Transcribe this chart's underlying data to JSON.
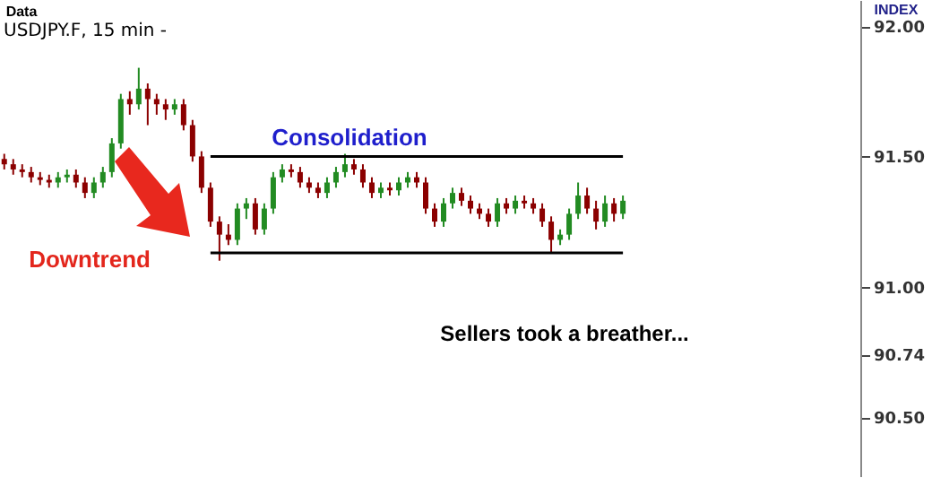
{
  "chart_data": {
    "type": "candlestick",
    "title": "USDJPY.F, 15 min -",
    "annotations": [
      "Consolidation",
      "Downtrend",
      "Sellers took a breather...",
      "Data",
      "INDEX"
    ],
    "categories": [
      null,
      null,
      null,
      null,
      null,
      null,
      null,
      null,
      null,
      null,
      null,
      null,
      null,
      null,
      null,
      null,
      null,
      null,
      null,
      null,
      null,
      null,
      null,
      null,
      null,
      null,
      null,
      null,
      null,
      null,
      null,
      null,
      null,
      null,
      null,
      null,
      null,
      null,
      null,
      null,
      null,
      null,
      null,
      null,
      null,
      null,
      null,
      null,
      null,
      null,
      null,
      null,
      null,
      null,
      null,
      null,
      null,
      null,
      null,
      null,
      null,
      null,
      null,
      null,
      null,
      null,
      null,
      null,
      null,
      null,
      null,
      null,
      null,
      null,
      null,
      null,
      null,
      null,
      null,
      null,
      null,
      null,
      null,
      null,
      null,
      null,
      null,
      null,
      null,
      null,
      null,
      null,
      null,
      null,
      null,
      null
    ],
    "ylim": [
      90.27,
      92.1
    ],
    "yticks": [
      {
        "value": 90.5,
        "label": "90.50"
      },
      {
        "value": 90.74,
        "label": "90.74"
      },
      {
        "value": 91,
        "label": "91.00"
      },
      {
        "value": 91.5,
        "label": "91.50"
      },
      {
        "value": 92,
        "label": "92.00"
      }
    ],
    "tick_labels": "y",
    "grid": false,
    "series": [
      {
        "type": "candlestick",
        "ohlc": [
          [
            91.49,
            91.51,
            91.45,
            91.47
          ],
          [
            91.47,
            91.49,
            91.43,
            91.45
          ],
          [
            91.45,
            91.47,
            91.42,
            91.44
          ],
          [
            91.44,
            91.46,
            91.4,
            91.42
          ],
          [
            91.42,
            91.44,
            91.39,
            91.41
          ],
          [
            91.41,
            91.43,
            91.38,
            91.4
          ],
          [
            91.4,
            91.44,
            91.38,
            91.42
          ],
          [
            91.42,
            91.45,
            91.4,
            91.43
          ],
          [
            91.43,
            91.45,
            91.38,
            91.4
          ],
          [
            91.4,
            91.42,
            91.34,
            91.36
          ],
          [
            91.36,
            91.42,
            91.34,
            91.4
          ],
          [
            91.4,
            91.46,
            91.38,
            91.44
          ],
          [
            91.44,
            91.57,
            91.42,
            91.55
          ],
          [
            91.55,
            91.74,
            91.53,
            91.72
          ],
          [
            91.72,
            91.75,
            91.66,
            91.7
          ],
          [
            91.7,
            91.84,
            91.68,
            91.76
          ],
          [
            91.76,
            91.78,
            91.62,
            91.72
          ],
          [
            91.72,
            91.74,
            91.66,
            91.7
          ],
          [
            91.7,
            91.72,
            91.64,
            91.68
          ],
          [
            91.68,
            91.72,
            91.66,
            91.7
          ],
          [
            91.7,
            91.72,
            91.6,
            91.62
          ],
          [
            91.62,
            91.64,
            91.48,
            91.5
          ],
          [
            91.5,
            91.52,
            91.36,
            91.38
          ],
          [
            91.38,
            91.4,
            91.23,
            91.25
          ],
          [
            91.25,
            91.27,
            91.1,
            91.2
          ],
          [
            91.2,
            91.24,
            91.16,
            91.18
          ],
          [
            91.18,
            91.32,
            91.16,
            91.3
          ],
          [
            91.3,
            91.34,
            91.26,
            91.32
          ],
          [
            91.32,
            91.34,
            91.2,
            91.22
          ],
          [
            91.22,
            91.32,
            91.2,
            91.3
          ],
          [
            91.3,
            91.44,
            91.28,
            91.42
          ],
          [
            91.42,
            91.47,
            91.4,
            91.45
          ],
          [
            91.45,
            91.47,
            91.42,
            91.44
          ],
          [
            91.44,
            91.46,
            91.38,
            91.4
          ],
          [
            91.4,
            91.42,
            91.36,
            91.38
          ],
          [
            91.38,
            91.4,
            91.34,
            91.36
          ],
          [
            91.36,
            91.42,
            91.34,
            91.4
          ],
          [
            91.4,
            91.46,
            91.38,
            91.44
          ],
          [
            91.44,
            91.51,
            91.42,
            91.47
          ],
          [
            91.47,
            91.49,
            91.43,
            91.45
          ],
          [
            91.45,
            91.47,
            91.38,
            91.4
          ],
          [
            91.4,
            91.42,
            91.34,
            91.36
          ],
          [
            91.36,
            91.4,
            91.34,
            91.38
          ],
          [
            91.38,
            91.4,
            91.35,
            91.37
          ],
          [
            91.37,
            91.42,
            91.35,
            91.4
          ],
          [
            91.4,
            91.44,
            91.38,
            91.42
          ],
          [
            91.42,
            91.44,
            91.38,
            91.4
          ],
          [
            91.4,
            91.42,
            91.28,
            91.3
          ],
          [
            91.3,
            91.32,
            91.23,
            91.25
          ],
          [
            91.25,
            91.34,
            91.23,
            91.32
          ],
          [
            91.32,
            91.38,
            91.3,
            91.36
          ],
          [
            91.36,
            91.38,
            91.31,
            91.33
          ],
          [
            91.33,
            91.35,
            91.28,
            91.3
          ],
          [
            91.3,
            91.32,
            91.26,
            91.28
          ],
          [
            91.28,
            91.3,
            91.23,
            91.25
          ],
          [
            91.25,
            91.34,
            91.23,
            91.32
          ],
          [
            91.32,
            91.34,
            91.28,
            91.3
          ],
          [
            91.3,
            91.35,
            91.28,
            91.33
          ],
          [
            91.33,
            91.35,
            91.3,
            91.32
          ],
          [
            91.32,
            91.34,
            91.28,
            91.3
          ],
          [
            91.3,
            91.32,
            91.23,
            91.25
          ],
          [
            91.25,
            91.27,
            91.13,
            91.18
          ],
          [
            91.18,
            91.22,
            91.16,
            91.2
          ],
          [
            91.2,
            91.3,
            91.18,
            91.28
          ],
          [
            91.28,
            91.4,
            91.26,
            91.35
          ],
          [
            91.35,
            91.38,
            91.28,
            91.3
          ],
          [
            91.3,
            91.33,
            91.22,
            91.25
          ],
          [
            91.25,
            91.35,
            91.23,
            91.32
          ],
          [
            91.32,
            91.34,
            91.25,
            91.28
          ],
          [
            91.28,
            91.35,
            91.26,
            91.33
          ],
          null,
          null,
          null,
          null,
          null,
          null,
          null,
          null,
          null,
          null,
          null,
          null,
          null,
          null,
          null,
          null,
          null,
          null,
          null,
          null,
          null,
          null,
          null,
          null,
          null,
          null
        ],
        "colors": [
          "#8b0000",
          "#8b0000",
          "#8b0000",
          "#8b0000",
          "#8b0000",
          "#8b0000",
          "#228b22",
          "#228b22",
          "#8b0000",
          "#8b0000",
          "#228b22",
          "#228b22",
          "#228b22",
          "#228b22",
          "#8b0000",
          "#228b22",
          "#8b0000",
          "#8b0000",
          "#8b0000",
          "#228b22",
          "#8b0000",
          "#8b0000",
          "#8b0000",
          "#8b0000",
          "#8b0000",
          "#8b0000",
          "#228b22",
          "#228b22",
          "#8b0000",
          "#228b22",
          "#228b22",
          "#228b22",
          "#8b0000",
          "#8b0000",
          "#8b0000",
          "#8b0000",
          "#228b22",
          "#228b22",
          "#228b22",
          "#8b0000",
          "#8b0000",
          "#8b0000",
          "#228b22",
          "#8b0000",
          "#228b22",
          "#228b22",
          "#8b0000",
          "#8b0000",
          "#8b0000",
          "#228b22",
          "#228b22",
          "#8b0000",
          "#8b0000",
          "#8b0000",
          "#8b0000",
          "#228b22",
          "#8b0000",
          "#228b22",
          "#8b0000",
          "#8b0000",
          "#8b0000",
          "#8b0000",
          "#228b22",
          "#228b22",
          "#228b22",
          "#8b0000",
          "#8b0000",
          "#228b22",
          "#8b0000",
          "#228b22",
          null,
          null,
          null,
          null,
          null,
          null,
          null,
          null,
          null,
          null,
          null,
          null,
          null,
          null,
          null,
          null,
          null,
          null,
          null,
          null,
          null,
          null,
          null,
          null,
          null,
          null
        ]
      },
      {
        "type": "line",
        "color": "#000000",
        "values": [
          null,
          null,
          null,
          null,
          null,
          null,
          null,
          null,
          null,
          null,
          null,
          null,
          null,
          null,
          null,
          null,
          null,
          null,
          null,
          null,
          null,
          null,
          null,
          91.5,
          91.5,
          91.5,
          91.5,
          91.5,
          91.5,
          91.5,
          91.5,
          91.5,
          91.5,
          91.5,
          91.5,
          91.5,
          91.5,
          91.5,
          91.5,
          91.5,
          91.5,
          91.5,
          91.5,
          91.5,
          91.5,
          91.5,
          91.5,
          91.5,
          91.5,
          91.5,
          91.5,
          91.5,
          91.5,
          91.5,
          91.5,
          91.5,
          91.5,
          91.5,
          91.5,
          91.5,
          91.5,
          91.5,
          91.5,
          91.5,
          91.5,
          91.5,
          91.5,
          91.5,
          91.5,
          91.5,
          null,
          null,
          null,
          null,
          null,
          null,
          null,
          null,
          null,
          null,
          null,
          null,
          null,
          null,
          null,
          null,
          null,
          null,
          null,
          null,
          null,
          null,
          null,
          null,
          null,
          null
        ]
      },
      {
        "type": "line",
        "color": "#000000",
        "values": [
          null,
          null,
          null,
          null,
          null,
          null,
          null,
          null,
          null,
          null,
          null,
          null,
          null,
          null,
          null,
          null,
          null,
          null,
          null,
          null,
          null,
          null,
          null,
          91.13,
          91.13,
          91.13,
          91.13,
          91.13,
          91.13,
          91.13,
          91.13,
          91.13,
          91.13,
          91.13,
          91.13,
          91.13,
          91.13,
          91.13,
          91.13,
          91.13,
          91.13,
          91.13,
          91.13,
          91.13,
          91.13,
          91.13,
          91.13,
          91.13,
          91.13,
          91.13,
          91.13,
          91.13,
          91.13,
          91.13,
          91.13,
          91.13,
          91.13,
          91.13,
          91.13,
          91.13,
          91.13,
          91.13,
          91.13,
          91.13,
          91.13,
          91.13,
          91.13,
          91.13,
          91.13,
          91.13,
          null,
          null,
          null,
          null,
          null,
          null,
          null,
          null,
          null,
          null,
          null,
          null,
          null,
          null,
          null,
          null,
          null,
          null,
          null,
          null,
          null,
          null,
          null,
          null,
          null,
          null
        ]
      }
    ]
  }
}
